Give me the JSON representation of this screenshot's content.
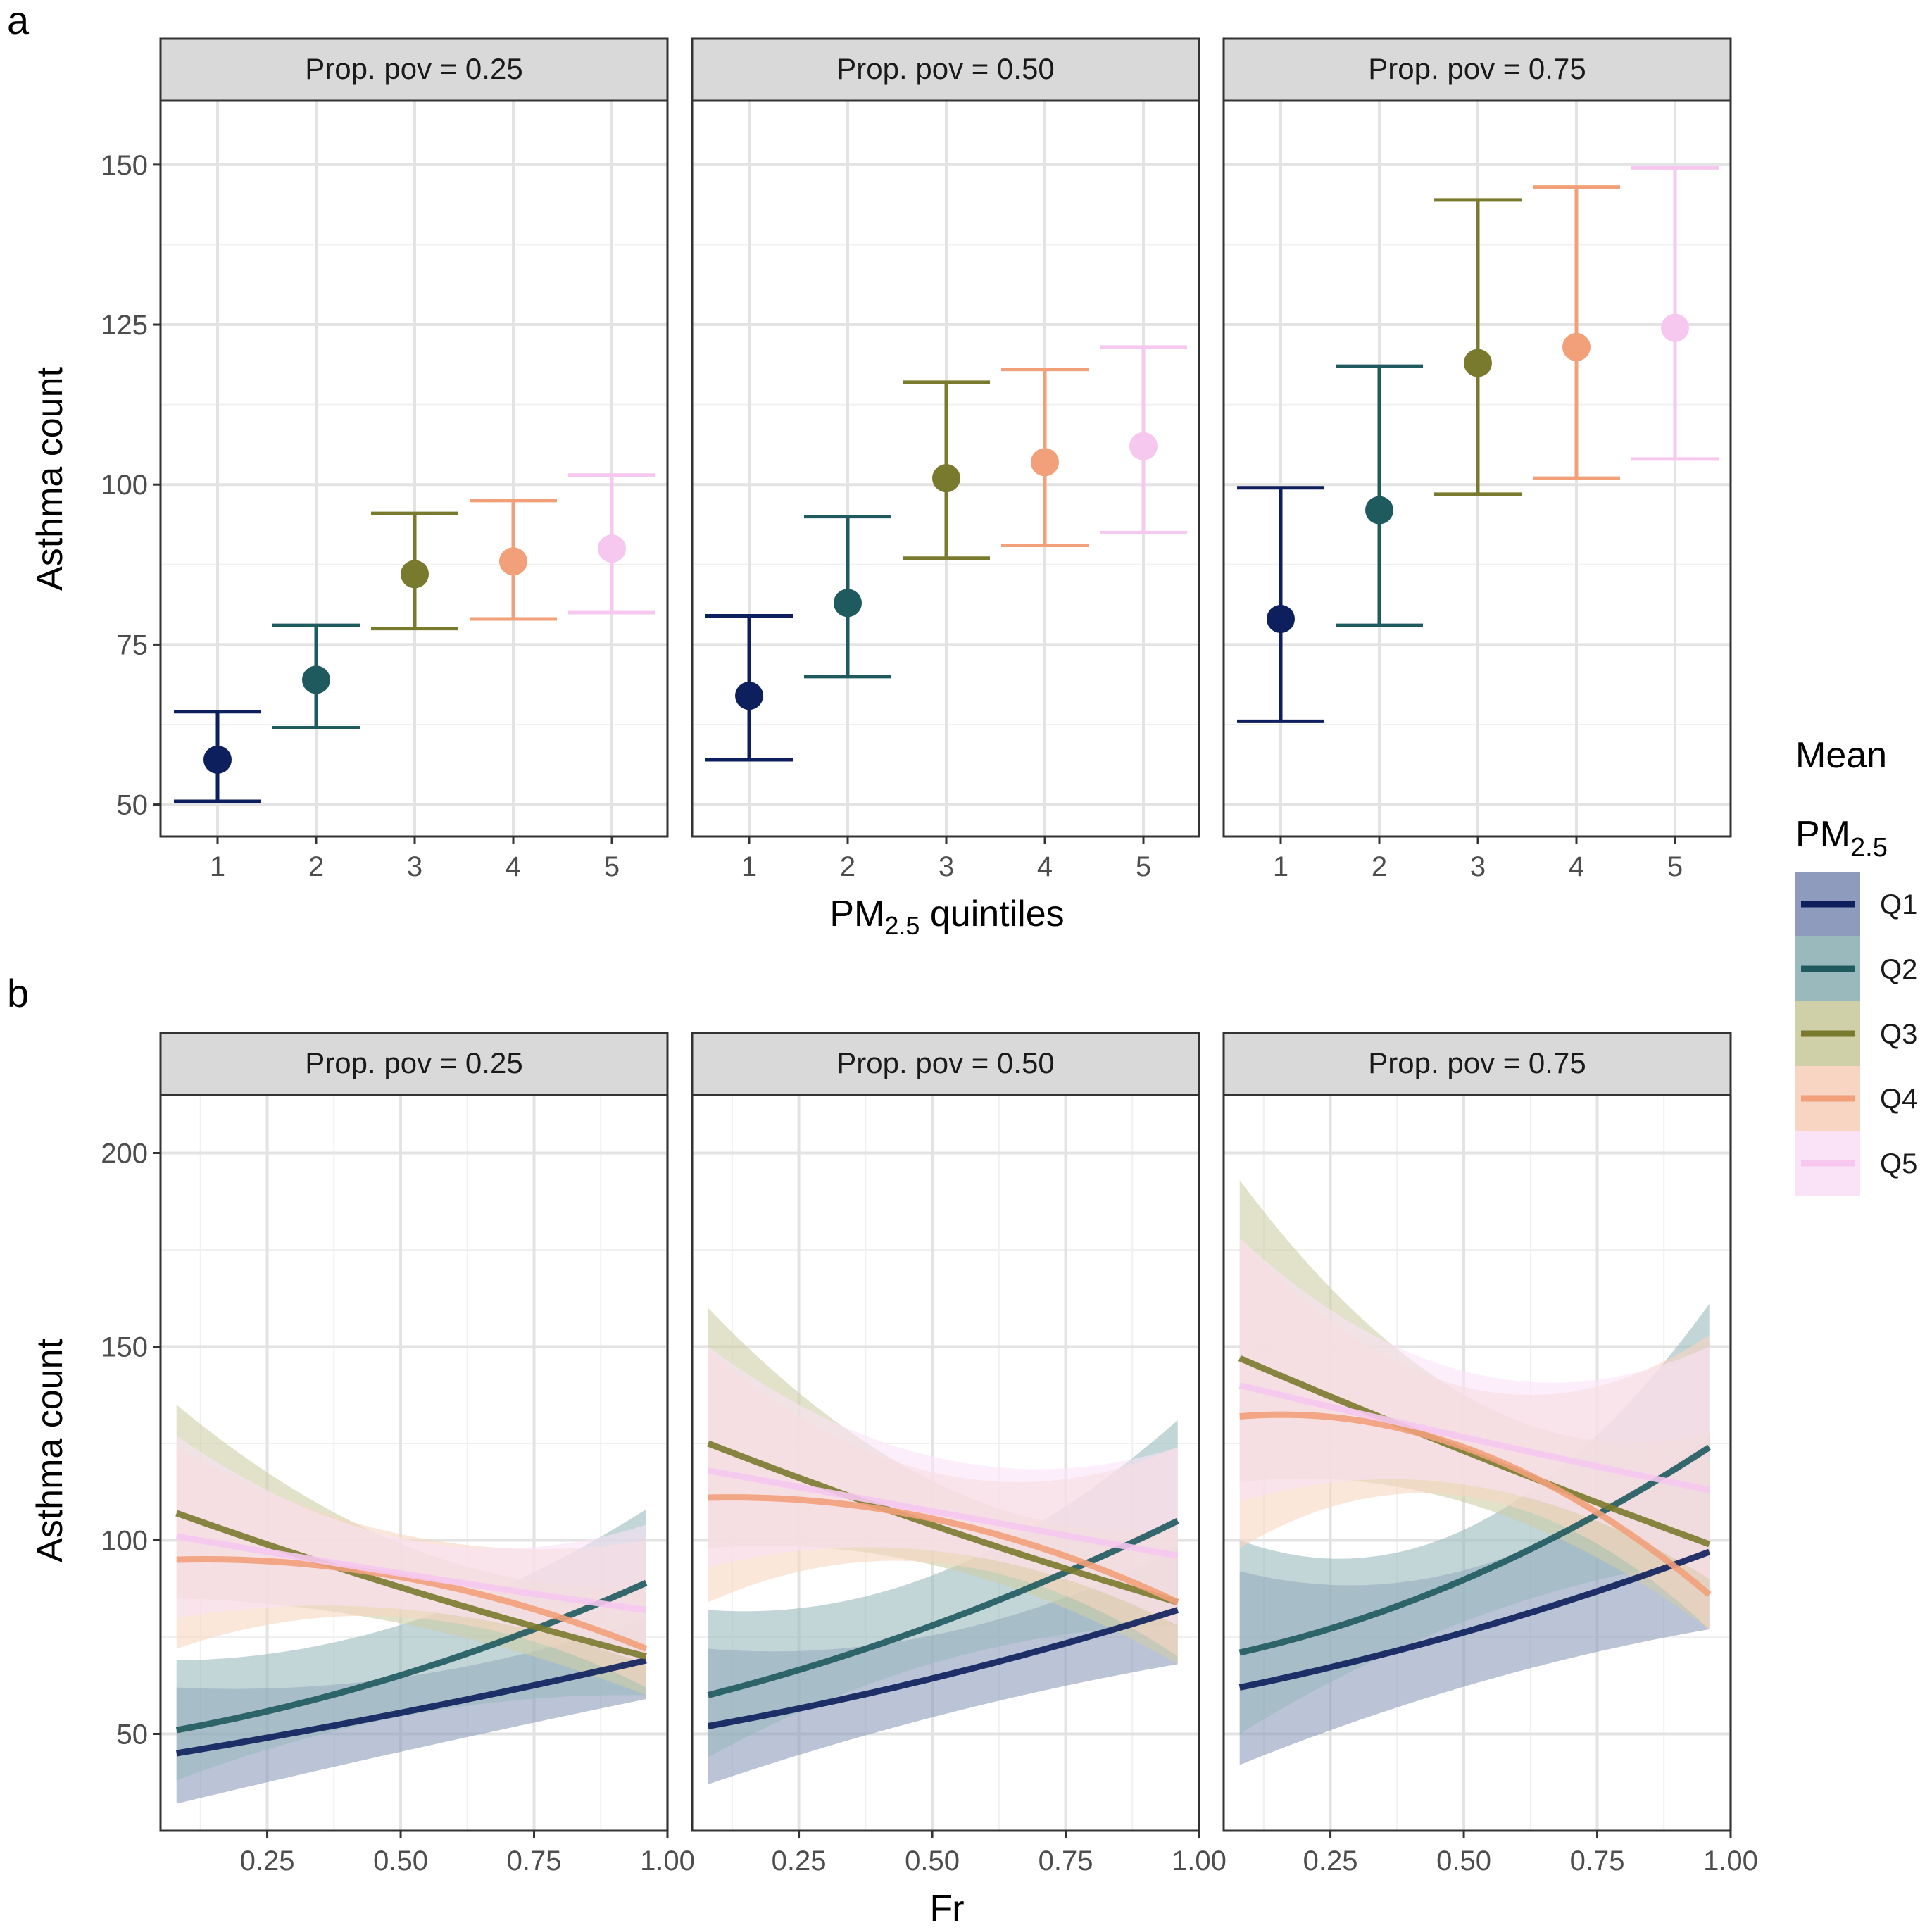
{
  "panel_labels": {
    "a": "a",
    "b": "b"
  },
  "facet_prefix": "Prop. pov",
  "legend": {
    "title_line1": "Mean",
    "title_line2_main": "PM",
    "title_line2_sub": "2.5",
    "keys": [
      {
        "label": "Q1",
        "line_color": "#0d1f5c",
        "fill_color": "#8e9bbd"
      },
      {
        "label": "Q2",
        "line_color": "#1f5a5f",
        "fill_color": "#9ab9bd"
      },
      {
        "label": "Q3",
        "line_color": "#7a7a2e",
        "fill_color": "#cfcfa8"
      },
      {
        "label": "Q4",
        "line_color": "#f2a07a",
        "fill_color": "#f8d5c2"
      },
      {
        "label": "Q5",
        "line_color": "#f6c8ef",
        "fill_color": "#fae3f6"
      }
    ]
  },
  "chart_data": [
    {
      "type": "scatter",
      "subtype": "point-errorbar",
      "panel": "a",
      "facets": [
        "Prop. pov = 0.25",
        "Prop. pov = 0.50",
        "Prop. pov = 0.75"
      ],
      "categories": [
        "1",
        "2",
        "3",
        "4",
        "5"
      ],
      "xlabel_main": "PM",
      "xlabel_sub": "2.5",
      "xlabel_rest": " quintiles",
      "ylabel": "Asthma count",
      "ylim": [
        45,
        160
      ],
      "yticks": [
        50,
        75,
        100,
        125,
        150
      ],
      "ytick_labels": [
        "50",
        "75",
        "100",
        "125",
        "150"
      ],
      "grid": true,
      "series": [
        {
          "facet": "Prop. pov = 0.25",
          "mean": [
            57,
            69.5,
            86,
            88,
            90
          ],
          "lower": [
            50.5,
            62,
            77.5,
            79,
            80
          ],
          "upper": [
            64.5,
            78,
            95.5,
            97.5,
            101.5
          ]
        },
        {
          "facet": "Prop. pov = 0.50",
          "mean": [
            67,
            81.5,
            101,
            103.5,
            106
          ],
          "lower": [
            57,
            70,
            88.5,
            90.5,
            92.5
          ],
          "upper": [
            79.5,
            95,
            116,
            118,
            121.5
          ]
        },
        {
          "facet": "Prop. pov = 0.75",
          "mean": [
            79,
            96,
            119,
            121.5,
            124.5
          ],
          "lower": [
            63,
            78,
            98.5,
            101,
            104
          ],
          "upper": [
            99.5,
            118.5,
            144.5,
            146.5,
            149.5
          ]
        }
      ]
    },
    {
      "type": "line",
      "subtype": "line-ribbon",
      "panel": "b",
      "facets": [
        "Prop. pov = 0.25",
        "Prop. pov = 0.50",
        "Prop. pov = 0.75"
      ],
      "xlabel": "Fr",
      "ylabel": "Asthma count",
      "xlim": [
        0.05,
        1.0
      ],
      "ylim": [
        25,
        215
      ],
      "xticks": [
        0.25,
        0.5,
        0.75,
        1.0
      ],
      "xtick_labels": [
        "0.25",
        "0.50",
        "0.75",
        "1.00"
      ],
      "yticks": [
        50,
        100,
        150,
        200
      ],
      "ytick_labels": [
        "50",
        "100",
        "150",
        "200"
      ],
      "grid": true,
      "x": [
        0.08,
        0.52,
        0.96
      ],
      "series": [
        {
          "facet": "Prop. pov = 0.25",
          "name": "Q1",
          "y": [
            45,
            56,
            69
          ],
          "lower": [
            32,
            46,
            59
          ],
          "upper": [
            62,
            65,
            80
          ]
        },
        {
          "facet": "Prop. pov = 0.25",
          "name": "Q2",
          "y": [
            51,
            66,
            89
          ],
          "lower": [
            38,
            55,
            60
          ],
          "upper": [
            69,
            79,
            108
          ]
        },
        {
          "facet": "Prop. pov = 0.25",
          "name": "Q3",
          "y": [
            107,
            87,
            70
          ],
          "lower": [
            85,
            78,
            60
          ],
          "upper": [
            135,
            98,
            88
          ]
        },
        {
          "facet": "Prop. pov = 0.25",
          "name": "Q4",
          "y": [
            95,
            90,
            72
          ],
          "lower": [
            72,
            80,
            62
          ],
          "upper": [
            124,
            101,
            100
          ]
        },
        {
          "facet": "Prop. pov = 0.25",
          "name": "Q5",
          "y": [
            101,
            91,
            82
          ],
          "lower": [
            80,
            82,
            68
          ],
          "upper": [
            127,
            100,
            104
          ]
        },
        {
          "facet": "Prop. pov = 0.50",
          "name": "Q1",
          "y": [
            52,
            65,
            82
          ],
          "lower": [
            37,
            55,
            68
          ],
          "upper": [
            72,
            76,
            98
          ]
        },
        {
          "facet": "Prop. pov = 0.50",
          "name": "Q2",
          "y": [
            60,
            79,
            105
          ],
          "lower": [
            44,
            69,
            78
          ],
          "upper": [
            82,
            92,
            131
          ]
        },
        {
          "facet": "Prop. pov = 0.50",
          "name": "Q3",
          "y": [
            125,
            103,
            84
          ],
          "lower": [
            98,
            93,
            68
          ],
          "upper": [
            160,
            114,
            103
          ]
        },
        {
          "facet": "Prop. pov = 0.50",
          "name": "Q4",
          "y": [
            111,
            105,
            84
          ],
          "lower": [
            84,
            94,
            70
          ],
          "upper": [
            149,
            117,
            124
          ]
        },
        {
          "facet": "Prop. pov = 0.50",
          "name": "Q5",
          "y": [
            118,
            107,
            96
          ],
          "lower": [
            93,
            97,
            78
          ],
          "upper": [
            150,
            121,
            124
          ]
        },
        {
          "facet": "Prop. pov = 0.75",
          "name": "Q1",
          "y": [
            62,
            77,
            97
          ],
          "lower": [
            42,
            63,
            77
          ],
          "upper": [
            92,
            93,
            127
          ]
        },
        {
          "facet": "Prop. pov = 0.75",
          "name": "Q2",
          "y": [
            71,
            91,
            124
          ],
          "lower": [
            50,
            80,
            95
          ],
          "upper": [
            100,
            104,
            161
          ]
        },
        {
          "facet": "Prop. pov = 0.75",
          "name": "Q3",
          "y": [
            147,
            122,
            99
          ],
          "lower": [
            115,
            109,
            77
          ],
          "upper": [
            193,
            136,
            128
          ]
        },
        {
          "facet": "Prop. pov = 0.75",
          "name": "Q4",
          "y": [
            132,
            123,
            86
          ],
          "lower": [
            98,
            111,
            77
          ],
          "upper": [
            178,
            139,
            153
          ]
        },
        {
          "facet": "Prop. pov = 0.75",
          "name": "Q5",
          "y": [
            140,
            126,
            113
          ],
          "lower": [
            110,
            114,
            90
          ],
          "upper": [
            178,
            143,
            150
          ]
        }
      ]
    }
  ]
}
